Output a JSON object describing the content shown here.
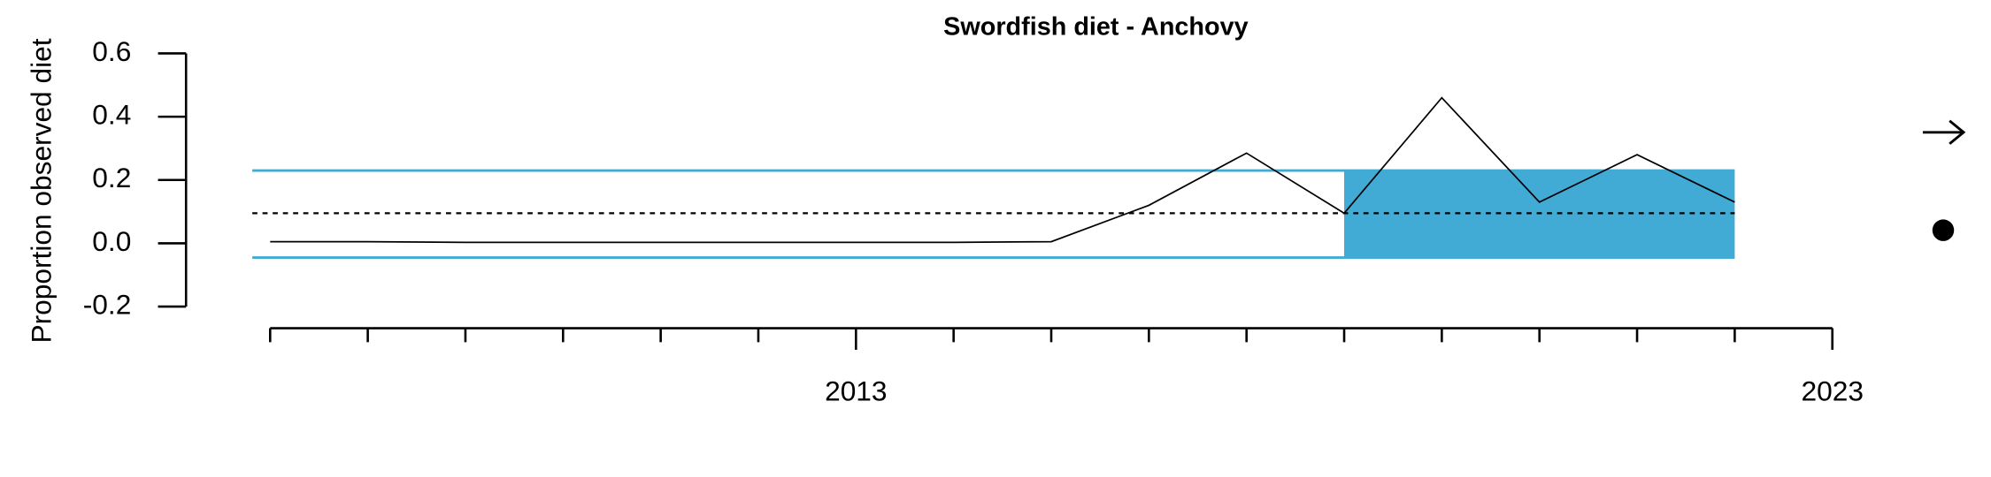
{
  "chart_data": {
    "type": "line",
    "title": "Swordfish diet - Anchovy",
    "y_label": "Proportion observed diet",
    "x": [
      2007,
      2008,
      2009,
      2010,
      2011,
      2012,
      2013,
      2014,
      2015,
      2016,
      2017,
      2018,
      2019,
      2020,
      2021,
      2022
    ],
    "series": [
      {
        "color": "#000000",
        "values": [
          0.005,
          0.005,
          0.003,
          0.003,
          0.003,
          0.003,
          0.003,
          0.003,
          0.005,
          0.12,
          0.285,
          0.095,
          0.46,
          0.13,
          0.28,
          0.13
        ]
      }
    ],
    "mean": 0.095,
    "upper": 0.23,
    "lower": -0.045,
    "band_color": "#41abd6",
    "shade_range": [
      2018,
      2022
    ],
    "xlim": [
      2007,
      2023
    ],
    "xticks": [
      {
        "value": 2007,
        "label": null
      },
      {
        "value": 2008,
        "label": null
      },
      {
        "value": 2009,
        "label": null
      },
      {
        "value": 2010,
        "label": null
      },
      {
        "value": 2011,
        "label": null
      },
      {
        "value": 2012,
        "label": null
      },
      2013,
      {
        "value": 2014,
        "label": null
      },
      {
        "value": 2015,
        "label": null
      },
      {
        "value": 2016,
        "label": null
      },
      {
        "value": 2017,
        "label": null
      },
      {
        "value": 2018,
        "label": null
      },
      {
        "value": 2019,
        "label": null
      },
      {
        "value": 2020,
        "label": null
      },
      {
        "value": 2021,
        "label": null
      },
      {
        "value": 2022,
        "label": null
      },
      2023
    ],
    "ylim": [
      -0.2,
      0.6
    ],
    "yticks": [
      {
        "value": -0.2,
        "label": "-0.2"
      },
      {
        "value": 0,
        "label": "0.0"
      },
      {
        "value": 0.2,
        "label": "0.2"
      },
      {
        "value": 0.4,
        "label": "0.4"
      },
      {
        "value": 0.6,
        "label": "0.6"
      }
    ]
  }
}
